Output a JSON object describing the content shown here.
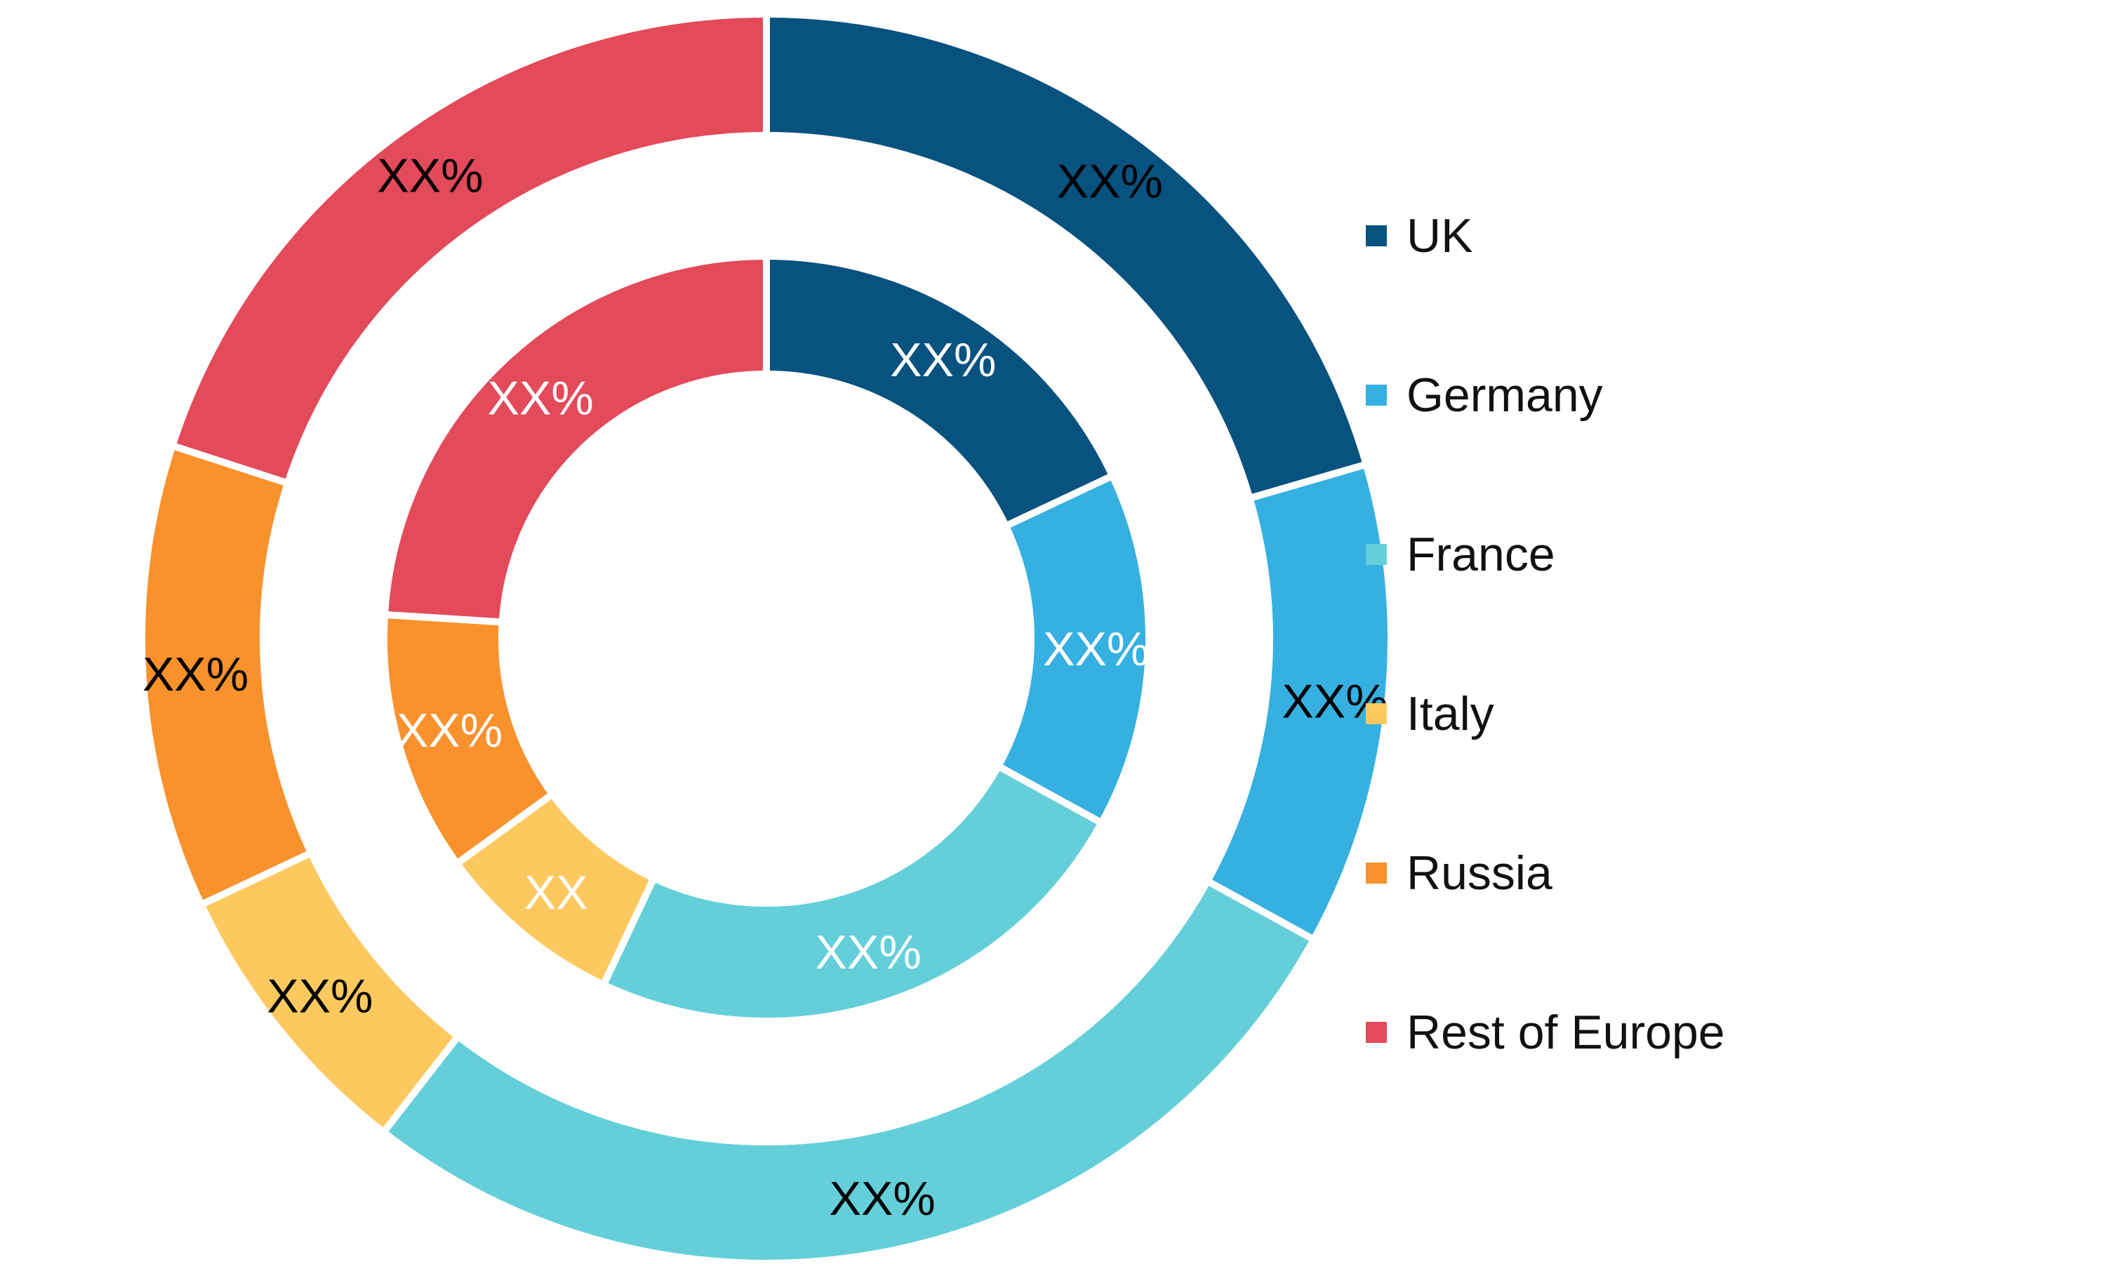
{
  "chart_data": {
    "type": "pie",
    "variant": "nested-donut",
    "title": "",
    "categories": [
      "UK",
      "Germany",
      "France",
      "Italy",
      "Russia",
      "Rest of Europe"
    ],
    "colors": [
      "#08527F",
      "#36B0E1",
      "#64CFD9",
      "#FDC95F",
      "#F9912D",
      "#E34A5A"
    ],
    "series": [
      {
        "ring": "outer",
        "values": [
          20.5,
          12.5,
          27.5,
          7.5,
          12.0,
          20.0
        ],
        "labels": [
          "XX%",
          "XX%",
          "XX%",
          "XX%",
          "XX%",
          "XX%"
        ],
        "label_color": "#000000"
      },
      {
        "ring": "inner",
        "values": [
          18.0,
          15.0,
          24.0,
          8.0,
          11.0,
          24.0
        ],
        "labels": [
          "XX%",
          "XX%",
          "XX%",
          "XX",
          "XX%",
          "XX%"
        ],
        "label_color": "#ffffff"
      }
    ],
    "legend": {
      "position": "right",
      "items": [
        "UK",
        "Germany",
        "France",
        "Italy",
        "Russia",
        "Rest of Europe"
      ]
    }
  }
}
